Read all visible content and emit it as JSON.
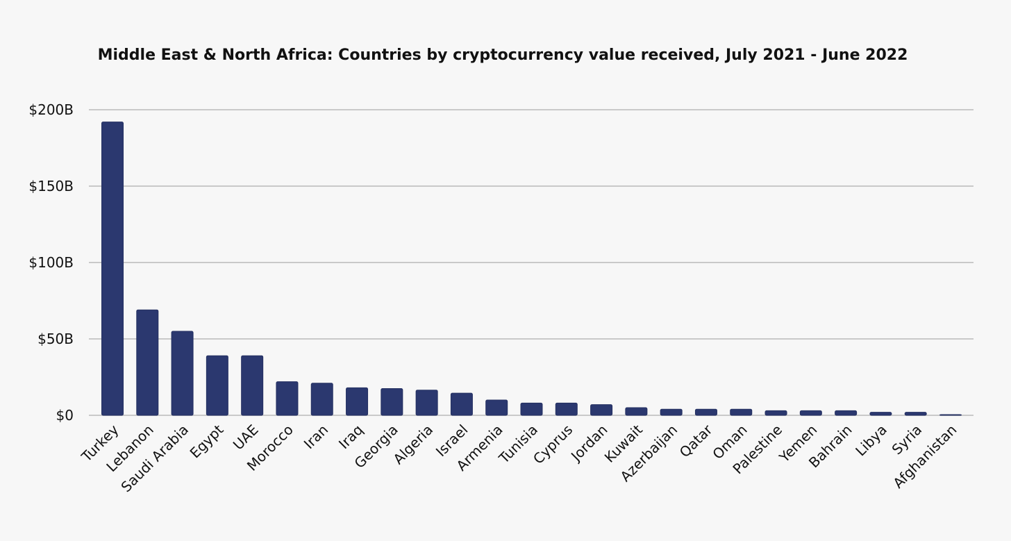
{
  "chart_data": {
    "type": "bar",
    "title": "Middle East & North Africa: Countries by cryptocurrency value received, July 2021 - June 2022",
    "xlabel": "",
    "ylabel": "",
    "ylim": [
      0,
      200
    ],
    "y_unit": "billion USD",
    "y_ticks": [
      0,
      50,
      100,
      150,
      200
    ],
    "y_tick_labels": [
      "$0",
      "$50B",
      "$100B",
      "$150B",
      "$200B"
    ],
    "grid": true,
    "legend": "none",
    "bar_color": "#2b386f",
    "categories": [
      "Turkey",
      "Lebanon",
      "Saudi Arabia",
      "Egypt",
      "UAE",
      "Morocco",
      "Iran",
      "Iraq",
      "Georgia",
      "Algeria",
      "Israel",
      "Armenia",
      "Tunisia",
      "Cyprus",
      "Jordan",
      "Kuwait",
      "Azerbaijan",
      "Qatar",
      "Oman",
      "Palestine",
      "Yemen",
      "Bahrain",
      "Libya",
      "Syria",
      "Afghanistan"
    ],
    "values": [
      192,
      69,
      55,
      39,
      39,
      22,
      21,
      18,
      17.5,
      16.5,
      14.5,
      10,
      8,
      8,
      7,
      5,
      4,
      4,
      4,
      3,
      3,
      3,
      2,
      2,
      0.3
    ]
  }
}
